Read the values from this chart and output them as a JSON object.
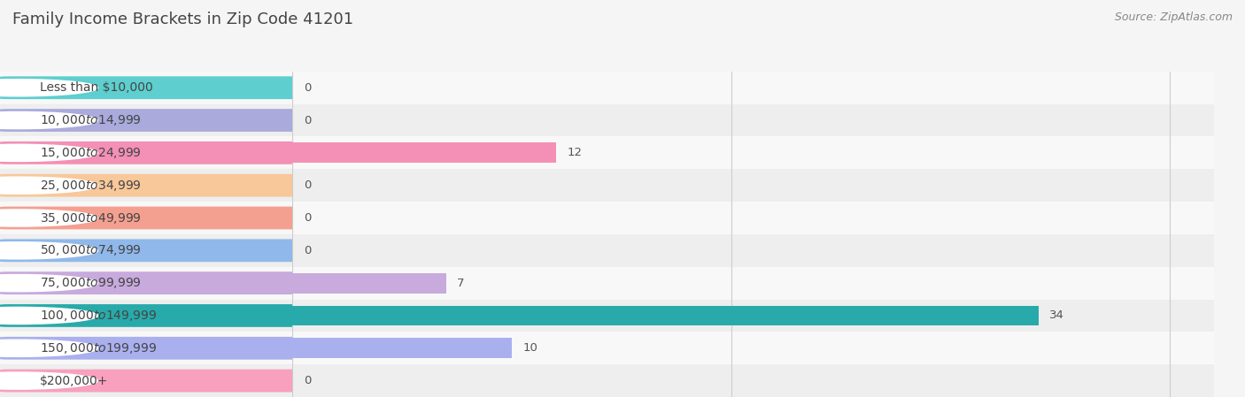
{
  "title": "Family Income Brackets in Zip Code 41201",
  "source": "Source: ZipAtlas.com",
  "categories": [
    "Less than $10,000",
    "$10,000 to $14,999",
    "$15,000 to $24,999",
    "$25,000 to $34,999",
    "$35,000 to $49,999",
    "$50,000 to $74,999",
    "$75,000 to $99,999",
    "$100,000 to $149,999",
    "$150,000 to $199,999",
    "$200,000+"
  ],
  "values": [
    0,
    0,
    12,
    0,
    0,
    0,
    7,
    34,
    10,
    0
  ],
  "bar_colors": [
    "#5ecece",
    "#aaaadd",
    "#f490b5",
    "#f8c89a",
    "#f4a090",
    "#90b8ea",
    "#c8aadd",
    "#28aaaa",
    "#aab0ee",
    "#f8a0be"
  ],
  "pill_colors": [
    "#5ecece",
    "#aaaadd",
    "#f490b5",
    "#f8c89a",
    "#f4a090",
    "#90b8ea",
    "#c8aadd",
    "#28aaaa",
    "#aab0ee",
    "#f8a0be"
  ],
  "row_bg_even": "#f8f8f8",
  "row_bg_odd": "#eeeeee",
  "bg_color": "#f5f5f5",
  "xlim": [
    0,
    42
  ],
  "xticks": [
    0,
    20,
    40
  ],
  "title_fontsize": 13,
  "label_fontsize": 10,
  "value_fontsize": 9.5,
  "source_fontsize": 9
}
